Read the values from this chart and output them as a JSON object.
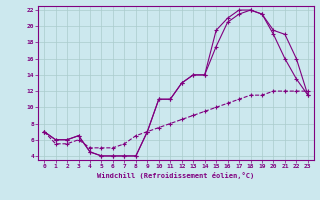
{
  "xlabel": "Windchill (Refroidissement éolien,°C)",
  "bg_color": "#cce8ee",
  "line_color": "#800080",
  "grid_color": "#aacccc",
  "xlim": [
    -0.5,
    23.5
  ],
  "ylim": [
    3.5,
    22.5
  ],
  "xticks": [
    0,
    1,
    2,
    3,
    4,
    5,
    6,
    7,
    8,
    9,
    10,
    11,
    12,
    13,
    14,
    15,
    16,
    17,
    18,
    19,
    20,
    21,
    22,
    23
  ],
  "yticks": [
    4,
    6,
    8,
    10,
    12,
    14,
    16,
    18,
    20,
    22
  ],
  "line1_x": [
    0,
    1,
    2,
    3,
    4,
    5,
    6,
    7,
    8,
    9,
    10,
    11,
    12,
    13,
    14,
    15,
    16,
    17,
    18,
    19,
    20,
    21,
    22,
    23
  ],
  "line1_y": [
    7,
    6,
    6,
    6.5,
    4.5,
    4,
    4,
    4,
    4,
    7,
    11,
    11,
    13,
    14,
    14,
    17.5,
    20.5,
    21.5,
    22,
    21.5,
    19,
    16,
    13.5,
    11.5
  ],
  "line2_x": [
    0,
    1,
    2,
    3,
    4,
    5,
    6,
    7,
    8,
    9,
    10,
    11,
    12,
    13,
    14,
    15,
    16,
    17,
    18,
    19,
    20,
    21,
    22,
    23
  ],
  "line2_y": [
    7,
    6,
    6,
    6.5,
    4.5,
    4,
    4,
    4,
    4,
    7,
    11,
    11,
    13,
    14,
    14,
    19.5,
    21,
    22,
    22,
    21.5,
    19.5,
    19,
    16,
    11.5
  ],
  "line3_x": [
    0,
    1,
    2,
    3,
    4,
    5,
    6,
    7,
    8,
    9,
    10,
    11,
    12,
    13,
    14,
    15,
    16,
    17,
    18,
    19,
    20,
    21,
    22,
    23
  ],
  "line3_y": [
    7,
    5.5,
    5.5,
    6,
    5,
    5,
    5,
    5.5,
    6.5,
    7,
    7.5,
    8,
    8.5,
    9,
    9.5,
    10,
    10.5,
    11,
    11.5,
    11.5,
    12,
    12,
    12,
    12
  ]
}
